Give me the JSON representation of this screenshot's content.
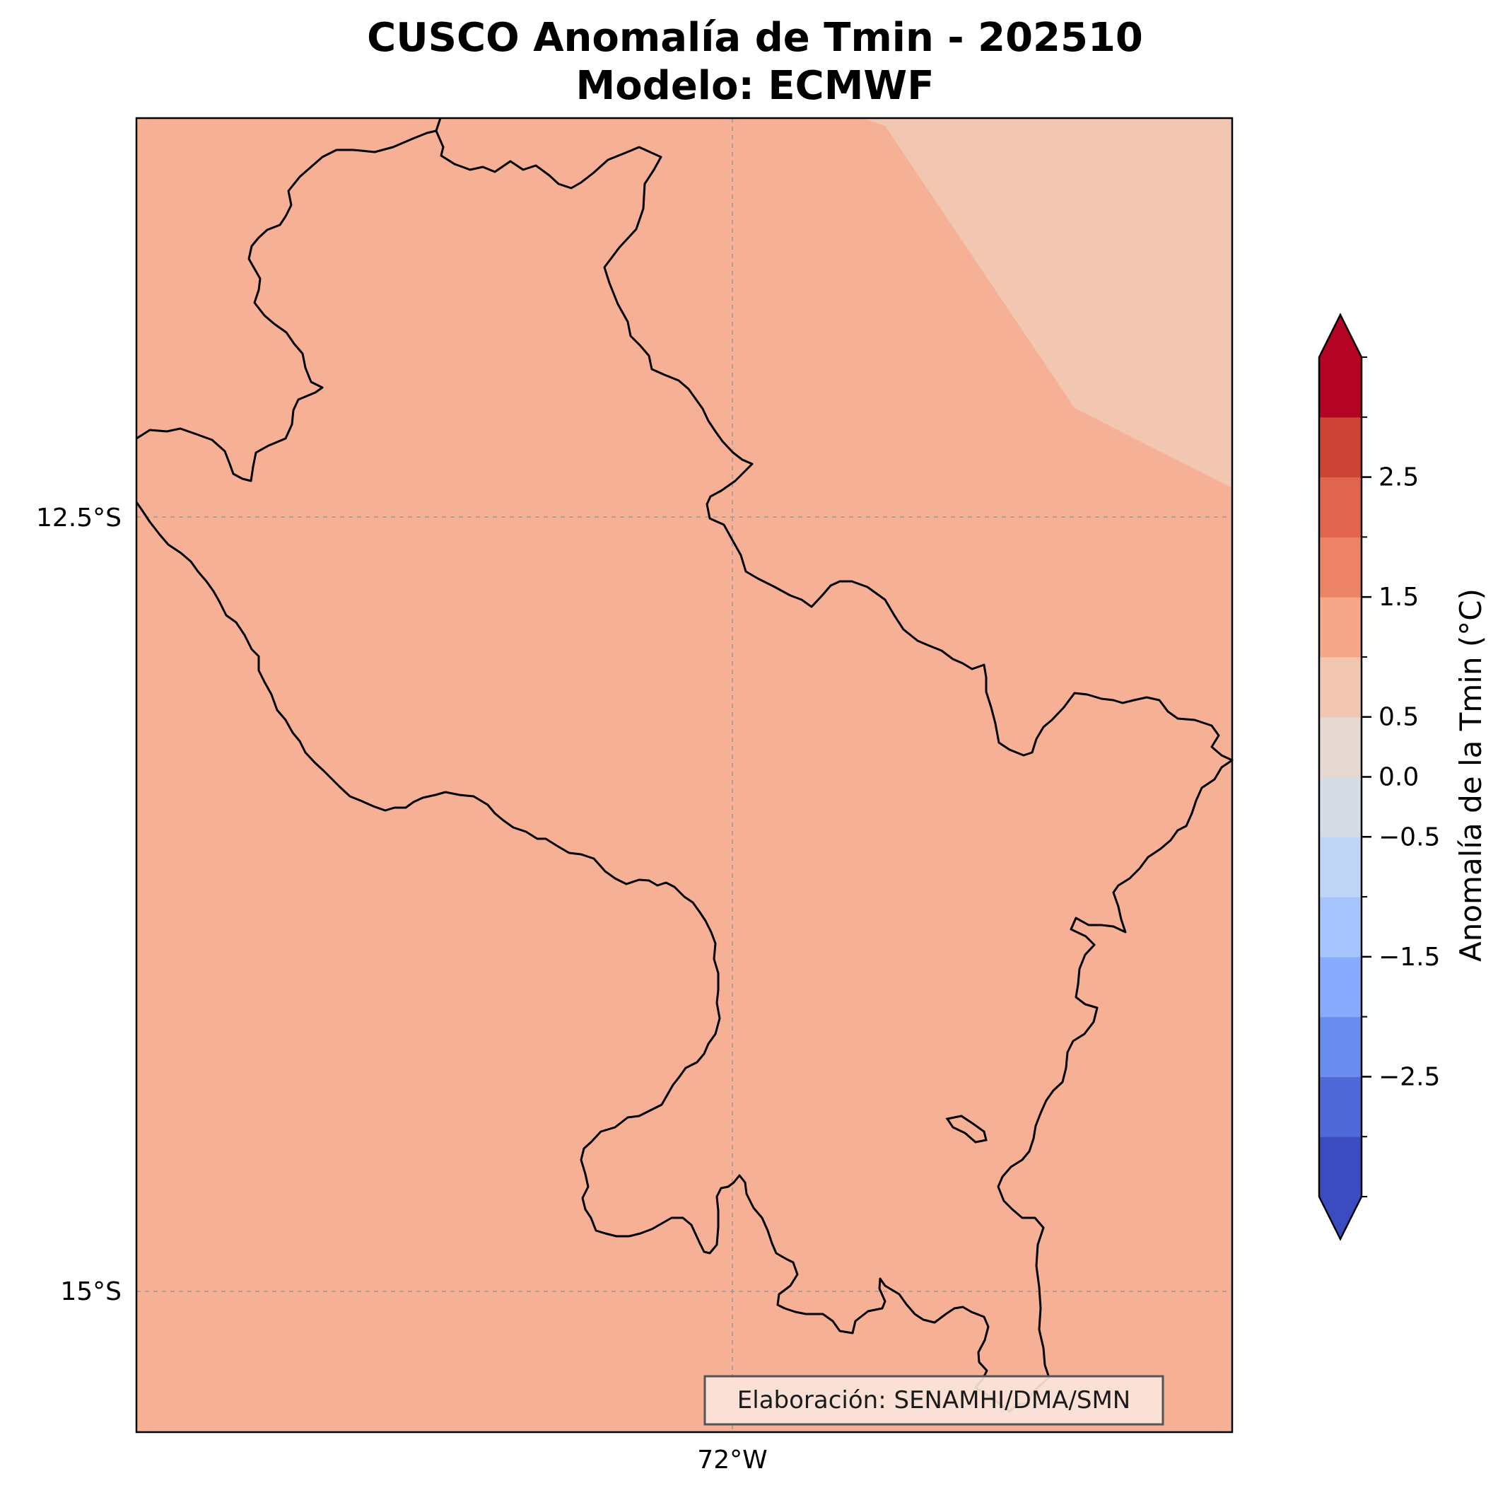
{
  "title_line1": "CUSCO Anomalía de Tmin - 202510",
  "title_line2": "Modelo: ECMWF",
  "map": {
    "lat_ticks": [
      {
        "label": "12.5°S",
        "lat": -12.5
      },
      {
        "label": "15°S",
        "lat": -15.0
      }
    ],
    "lon_ticks": [
      {
        "label": "72°W",
        "lon": -72.0
      }
    ],
    "region": "Cusco",
    "field_colors": {
      "main": "#f6b096",
      "northeast": "#f2c7b2"
    },
    "credit": "Elaboración: SENAMHI/DMA/SMN"
  },
  "colorbar": {
    "label": "Anomalía de la Tmin (°C)",
    "extend": "both",
    "min": -3.5,
    "max": 3.5,
    "colors": [
      "#3b4cc0",
      "#4f69d9",
      "#6b8df0",
      "#88abfd",
      "#a6c4fe",
      "#c0d4f5",
      "#d5dbe5",
      "#e5d8d1",
      "#f2c7b2",
      "#f6a789",
      "#ed8366",
      "#e0654f",
      "#cb4436",
      "#b40426"
    ],
    "under_color": "#3b4cc0",
    "over_color": "#b40426",
    "ticks": [
      {
        "label": "2.5",
        "value": 2.5
      },
      {
        "label": "1.5",
        "value": 1.5
      },
      {
        "label": "0.5",
        "value": 0.5
      },
      {
        "label": "0.0",
        "value": 0.0
      },
      {
        "label": "−0.5",
        "value": -0.5
      },
      {
        "label": "−1.5",
        "value": -1.5
      },
      {
        "label": "−2.5",
        "value": -2.5
      }
    ]
  }
}
